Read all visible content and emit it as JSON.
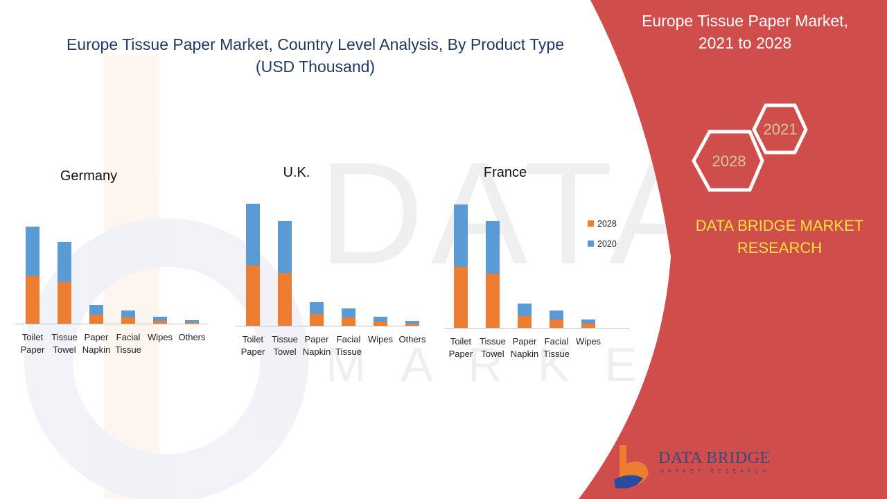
{
  "title": "Europe Tissue Paper Market, Country Level Analysis, By  Product Type (USD Thousand)",
  "side_panel": {
    "title_line1": "Europe Tissue Paper Market,",
    "title_line2": "2021 to 2028",
    "hex_year_1": "2021",
    "hex_year_2": "2028",
    "brand_line1": "DATA BRIDGE MARKET",
    "brand_line2": "RESEARCH",
    "bg_color": "#cf4d4a"
  },
  "logo": {
    "name": "DATA BRIDGE",
    "tagline": "MARKET RESEARCH"
  },
  "legend": [
    {
      "label": "2028",
      "color": "#ed7d31"
    },
    {
      "label": "2020",
      "color": "#5b9bd5"
    }
  ],
  "chart_data": [
    {
      "type": "bar",
      "stacked": true,
      "title": "Germany",
      "categories": [
        "Toilet Paper",
        "Tissue Towel",
        "Paper Napkin",
        "Facial Tissue",
        "Wipes",
        "Others"
      ],
      "series": [
        {
          "name": "2028",
          "values": [
            69,
            60,
            13,
            9,
            4,
            2
          ]
        },
        {
          "name": "2020",
          "values": [
            71,
            58,
            14,
            10,
            6,
            3
          ]
        }
      ]
    },
    {
      "type": "bar",
      "stacked": true,
      "title": "U.K.",
      "categories": [
        "Toilet Paper",
        "Tissue Towel",
        "Paper Napkin",
        "Facial Tissue",
        "Wipes",
        "Others"
      ],
      "series": [
        {
          "name": "2028",
          "values": [
            87,
            76,
            17,
            12,
            6,
            3
          ]
        },
        {
          "name": "2020",
          "values": [
            89,
            75,
            17,
            13,
            7,
            4
          ]
        }
      ]
    },
    {
      "type": "bar",
      "stacked": true,
      "title": "France",
      "categories": [
        "Toilet Paper",
        "Tissue Towel",
        "Paper Napkin",
        "Facial Tissue",
        "Wipes"
      ],
      "series": [
        {
          "name": "2028",
          "values": [
            88,
            78,
            17,
            12,
            6
          ]
        },
        {
          "name": "2020",
          "values": [
            90,
            76,
            18,
            13,
            6
          ]
        }
      ]
    }
  ]
}
